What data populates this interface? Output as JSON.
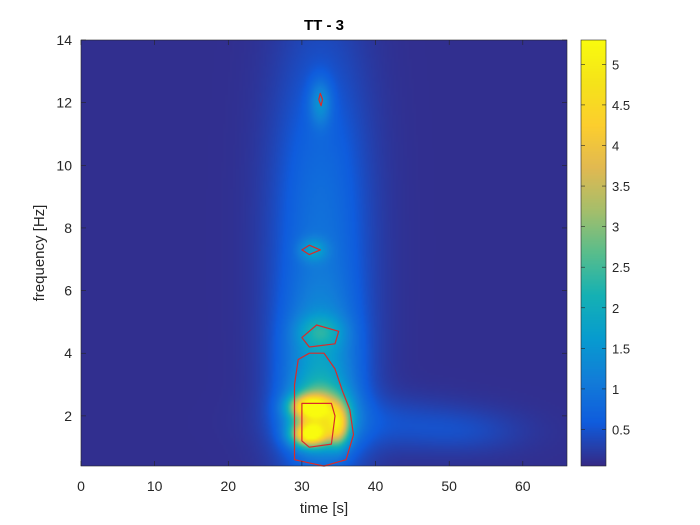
{
  "chart_data": {
    "type": "heatmap",
    "title": "TT - 3",
    "xlabel": "time [s]",
    "ylabel": "frequency [Hz]",
    "xlim": [
      0,
      66
    ],
    "ylim": [
      0.4,
      14
    ],
    "xticks": [
      0,
      10,
      20,
      30,
      40,
      50,
      60
    ],
    "yticks": [
      2,
      4,
      6,
      8,
      10,
      12,
      14
    ],
    "colorbar": {
      "min": 0.05,
      "max": 5.3,
      "ticks": [
        0.5,
        1,
        1.5,
        2,
        2.5,
        3,
        3.5,
        4,
        4.5,
        5
      ],
      "tick_labels": [
        "0.5",
        "1",
        "1.5",
        "2",
        "2.5",
        "3",
        "3.5",
        "4",
        "4.5",
        "5"
      ],
      "colormap": "parula"
    },
    "background_value": 0.1,
    "energy_regions": [
      {
        "t": 32.5,
        "f": 7.5,
        "value": 0.8,
        "st": 4.5,
        "sf": 4.5
      },
      {
        "t": 32.5,
        "f": 3.0,
        "value": 1.2,
        "st": 3.5,
        "sf": 1.8
      },
      {
        "t": 32.5,
        "f": 12.0,
        "value": 0.9,
        "st": 1.0,
        "sf": 0.5
      },
      {
        "t": 31.5,
        "f": 7.3,
        "value": 0.9,
        "st": 1.3,
        "sf": 0.25
      },
      {
        "t": 32.5,
        "f": 4.7,
        "value": 0.8,
        "st": 2.2,
        "sf": 0.35
      },
      {
        "t": 32.5,
        "f": 2.0,
        "value": 2.4,
        "st": 2.6,
        "sf": 0.6
      },
      {
        "t": 31.0,
        "f": 2.3,
        "value": 2.8,
        "st": 1.8,
        "sf": 0.25
      },
      {
        "t": 31.0,
        "f": 1.4,
        "value": 3.5,
        "st": 1.6,
        "sf": 0.25
      },
      {
        "t": 35.0,
        "f": 1.7,
        "value": 2.2,
        "st": 1.0,
        "sf": 0.45
      },
      {
        "t": 40.0,
        "f": 1.8,
        "value": 0.3,
        "st": 8.0,
        "sf": 0.6
      },
      {
        "t": 52.0,
        "f": 1.5,
        "value": 0.25,
        "st": 6.0,
        "sf": 0.5
      }
    ],
    "contour_regions": [
      {
        "points": [
          [
            29,
            0.6
          ],
          [
            29,
            3.0
          ],
          [
            29.5,
            3.8
          ],
          [
            31,
            4.0
          ],
          [
            33,
            4.0
          ],
          [
            34.5,
            3.5
          ],
          [
            35.5,
            2.8
          ],
          [
            36.5,
            2.2
          ],
          [
            37,
            1.4
          ],
          [
            36,
            0.6
          ],
          [
            33,
            0.4
          ],
          [
            31,
            0.5
          ]
        ]
      },
      {
        "points": [
          [
            30,
            4.5
          ],
          [
            32,
            4.9
          ],
          [
            35,
            4.7
          ],
          [
            34.5,
            4.3
          ],
          [
            31,
            4.2
          ]
        ]
      },
      {
        "points": [
          [
            30,
            7.3
          ],
          [
            31,
            7.45
          ],
          [
            32.5,
            7.3
          ],
          [
            31,
            7.15
          ]
        ]
      },
      {
        "points": [
          [
            32.5,
            12.3
          ],
          [
            32.8,
            12.1
          ],
          [
            32.6,
            11.9
          ],
          [
            32.3,
            12.1
          ]
        ]
      },
      {
        "points": [
          [
            30,
            1.9
          ],
          [
            30,
            2.4
          ],
          [
            34,
            2.4
          ],
          [
            34.5,
            2.0
          ],
          [
            34,
            1.1
          ],
          [
            31,
            1.0
          ],
          [
            30,
            1.2
          ]
        ]
      }
    ],
    "contour_color": "#d92a2a"
  }
}
